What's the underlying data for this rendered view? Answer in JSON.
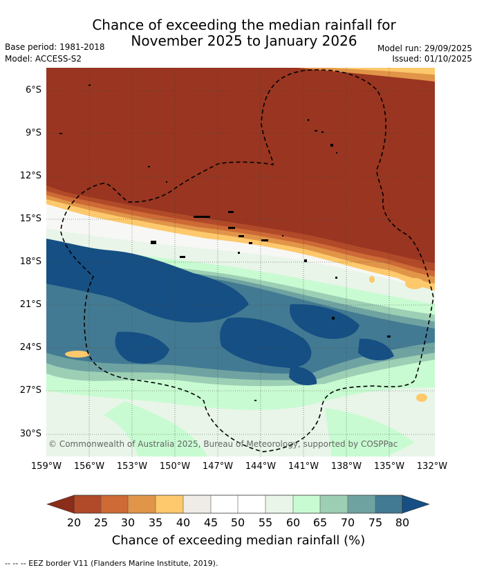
{
  "title": {
    "line1": "Chance of exceeding the median rainfall for",
    "line2": "November 2025 to January 2026"
  },
  "meta": {
    "base_period": "Base period: 1981-2018",
    "model": "Model: ACCESS-S2",
    "model_run": "Model run: 29/09/2025",
    "issued": "Issued: 01/10/2025"
  },
  "map": {
    "lat_labels": [
      "6°S",
      "9°S",
      "12°S",
      "15°S",
      "18°S",
      "21°S",
      "24°S",
      "27°S",
      "30°S"
    ],
    "lon_labels": [
      "159°W",
      "156°W",
      "153°W",
      "150°W",
      "147°W",
      "144°W",
      "141°W",
      "138°W",
      "135°W",
      "132°W"
    ],
    "credit": "© Commonwealth of Australia 2025, Bureau of Meteorology, supported by COSPPac"
  },
  "colorbar": {
    "ticks": [
      "20",
      "25",
      "30",
      "35",
      "40",
      "45",
      "50",
      "55",
      "60",
      "65",
      "70",
      "75",
      "80"
    ],
    "colors": [
      "#8b2d1a",
      "#b14a28",
      "#cd6a36",
      "#e19548",
      "#fdc96c",
      "#efebe6",
      "#ffffff",
      "#ffffff",
      "#e8f5e8",
      "#c8fbd1",
      "#9ccfb4",
      "#6fa3a2",
      "#437a93",
      "#154f83"
    ],
    "title": "Chance of exceeding median rainfall (%)"
  },
  "footnote": "--  --  -- EEZ border V11 (Flanders Marine Institute, 2019)."
}
